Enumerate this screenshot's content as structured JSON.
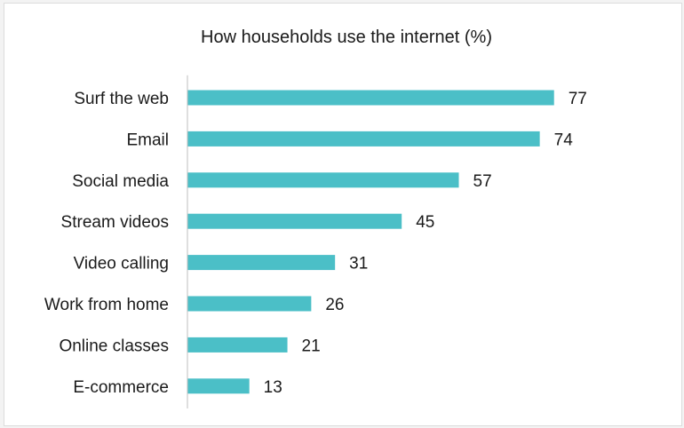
{
  "chart_data": {
    "type": "bar",
    "orientation": "horizontal",
    "title": "How households use the internet (%)",
    "categories": [
      "Surf the web",
      "Email",
      "Social media",
      "Stream videos",
      "Video calling",
      "Work from home",
      "Online classes",
      "E-commerce"
    ],
    "values": [
      77,
      74,
      57,
      45,
      31,
      26,
      21,
      13
    ],
    "xlim": [
      0,
      100
    ],
    "grid": false,
    "legend": "none",
    "bar_color": "#4bbfc7",
    "axis_color": "#bfbfbf"
  }
}
